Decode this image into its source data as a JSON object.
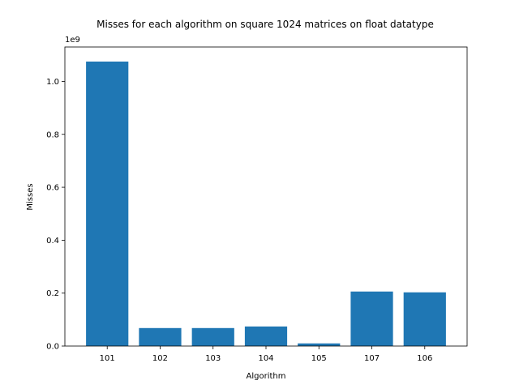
{
  "chart_data": {
    "type": "bar",
    "title": "Misses for each algorithm on square 1024 matrices on float datatype",
    "xlabel": "Algorithm",
    "ylabel": "Misses",
    "y_offset_label": "1e9",
    "categories": [
      "101",
      "102",
      "103",
      "104",
      "105",
      "107",
      "106"
    ],
    "values": [
      1075000000,
      68000000,
      68000000,
      74000000,
      10000000,
      206000000,
      203000000
    ],
    "ylim": [
      0,
      1130000000
    ],
    "yticks": [
      0.0,
      0.2,
      0.4,
      0.6,
      0.8,
      1.0
    ],
    "ytick_labels": [
      "0.0",
      "0.2",
      "0.4",
      "0.6",
      "0.8",
      "1.0"
    ],
    "y_scale": 1000000000,
    "bar_color": "#1f77b4",
    "grid": false,
    "legend": "none"
  }
}
